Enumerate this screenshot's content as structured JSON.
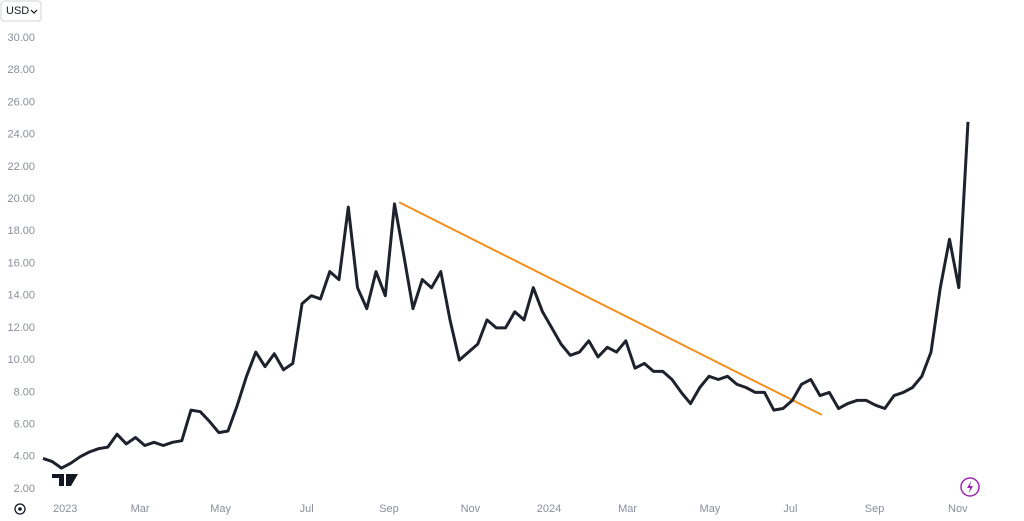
{
  "chart_data": {
    "type": "line",
    "currency": "USD",
    "values": [
      3.9,
      3.7,
      3.3,
      3.6,
      4.0,
      4.3,
      4.5,
      4.6,
      5.4,
      4.8,
      5.2,
      4.7,
      4.9,
      4.7,
      4.9,
      5.0,
      6.9,
      6.8,
      6.2,
      5.5,
      5.6,
      7.2,
      9.0,
      10.5,
      9.6,
      10.4,
      9.4,
      9.8,
      13.5,
      14.0,
      13.8,
      15.5,
      15.0,
      19.5,
      14.5,
      13.2,
      15.5,
      14.0,
      19.7,
      16.5,
      13.2,
      15.0,
      14.5,
      15.5,
      12.5,
      10.0,
      10.5,
      11.0,
      12.5,
      12.0,
      12.0,
      13.0,
      12.5,
      14.5,
      13.0,
      12.0,
      11.0,
      10.3,
      10.5,
      11.2,
      10.2,
      10.8,
      10.5,
      11.2,
      9.5,
      9.8,
      9.3,
      9.3,
      8.8,
      8.0,
      7.3,
      8.3,
      9.0,
      8.8,
      9.0,
      8.5,
      8.3,
      8.0,
      8.0,
      6.9,
      7.0,
      7.5,
      8.5,
      8.8,
      7.8,
      8.0,
      7.0,
      7.3,
      7.5,
      7.5,
      7.2,
      7.0,
      7.8,
      8.0,
      8.3,
      9.0,
      10.5,
      14.5,
      17.5,
      14.5,
      24.8
    ],
    "color": "#1e222d",
    "xlim": [
      0,
      100
    ],
    "xticks": [
      {
        "value": 2.4,
        "label": "2023"
      },
      {
        "value": 10.5,
        "label": "Mar"
      },
      {
        "value": 19.2,
        "label": "May"
      },
      {
        "value": 28.5,
        "label": "Jul"
      },
      {
        "value": 37.4,
        "label": "Sep"
      },
      {
        "value": 46.2,
        "label": "Nov"
      },
      {
        "value": 54.7,
        "label": "2024"
      },
      {
        "value": 63.2,
        "label": "Mar"
      },
      {
        "value": 72.1,
        "label": "May"
      },
      {
        "value": 80.8,
        "label": "Jul"
      },
      {
        "value": 89.9,
        "label": "Sep"
      },
      {
        "value": 98.9,
        "label": "Nov"
      }
    ],
    "ylim": [
      2,
      30
    ],
    "yticks": [
      {
        "value": 2,
        "label": "2.00"
      },
      {
        "value": 4,
        "label": "4.00"
      },
      {
        "value": 6,
        "label": "6.00"
      },
      {
        "value": 8,
        "label": "8.00"
      },
      {
        "value": 10,
        "label": "10.00"
      },
      {
        "value": 12,
        "label": "12.00"
      },
      {
        "value": 14,
        "label": "14.00"
      },
      {
        "value": 16,
        "label": "16.00"
      },
      {
        "value": 18,
        "label": "18.00"
      },
      {
        "value": 20,
        "label": "20.00"
      },
      {
        "value": 22,
        "label": "22.00"
      },
      {
        "value": 24,
        "label": "24.00"
      },
      {
        "value": 26,
        "label": "26.00"
      },
      {
        "value": 28,
        "label": "28.00"
      },
      {
        "value": 30,
        "label": "30.00"
      }
    ],
    "grid": false,
    "trendline": {
      "color": "#f0901e",
      "start": [
        38.5,
        19.8
      ],
      "end": [
        84.2,
        6.6
      ]
    }
  }
}
